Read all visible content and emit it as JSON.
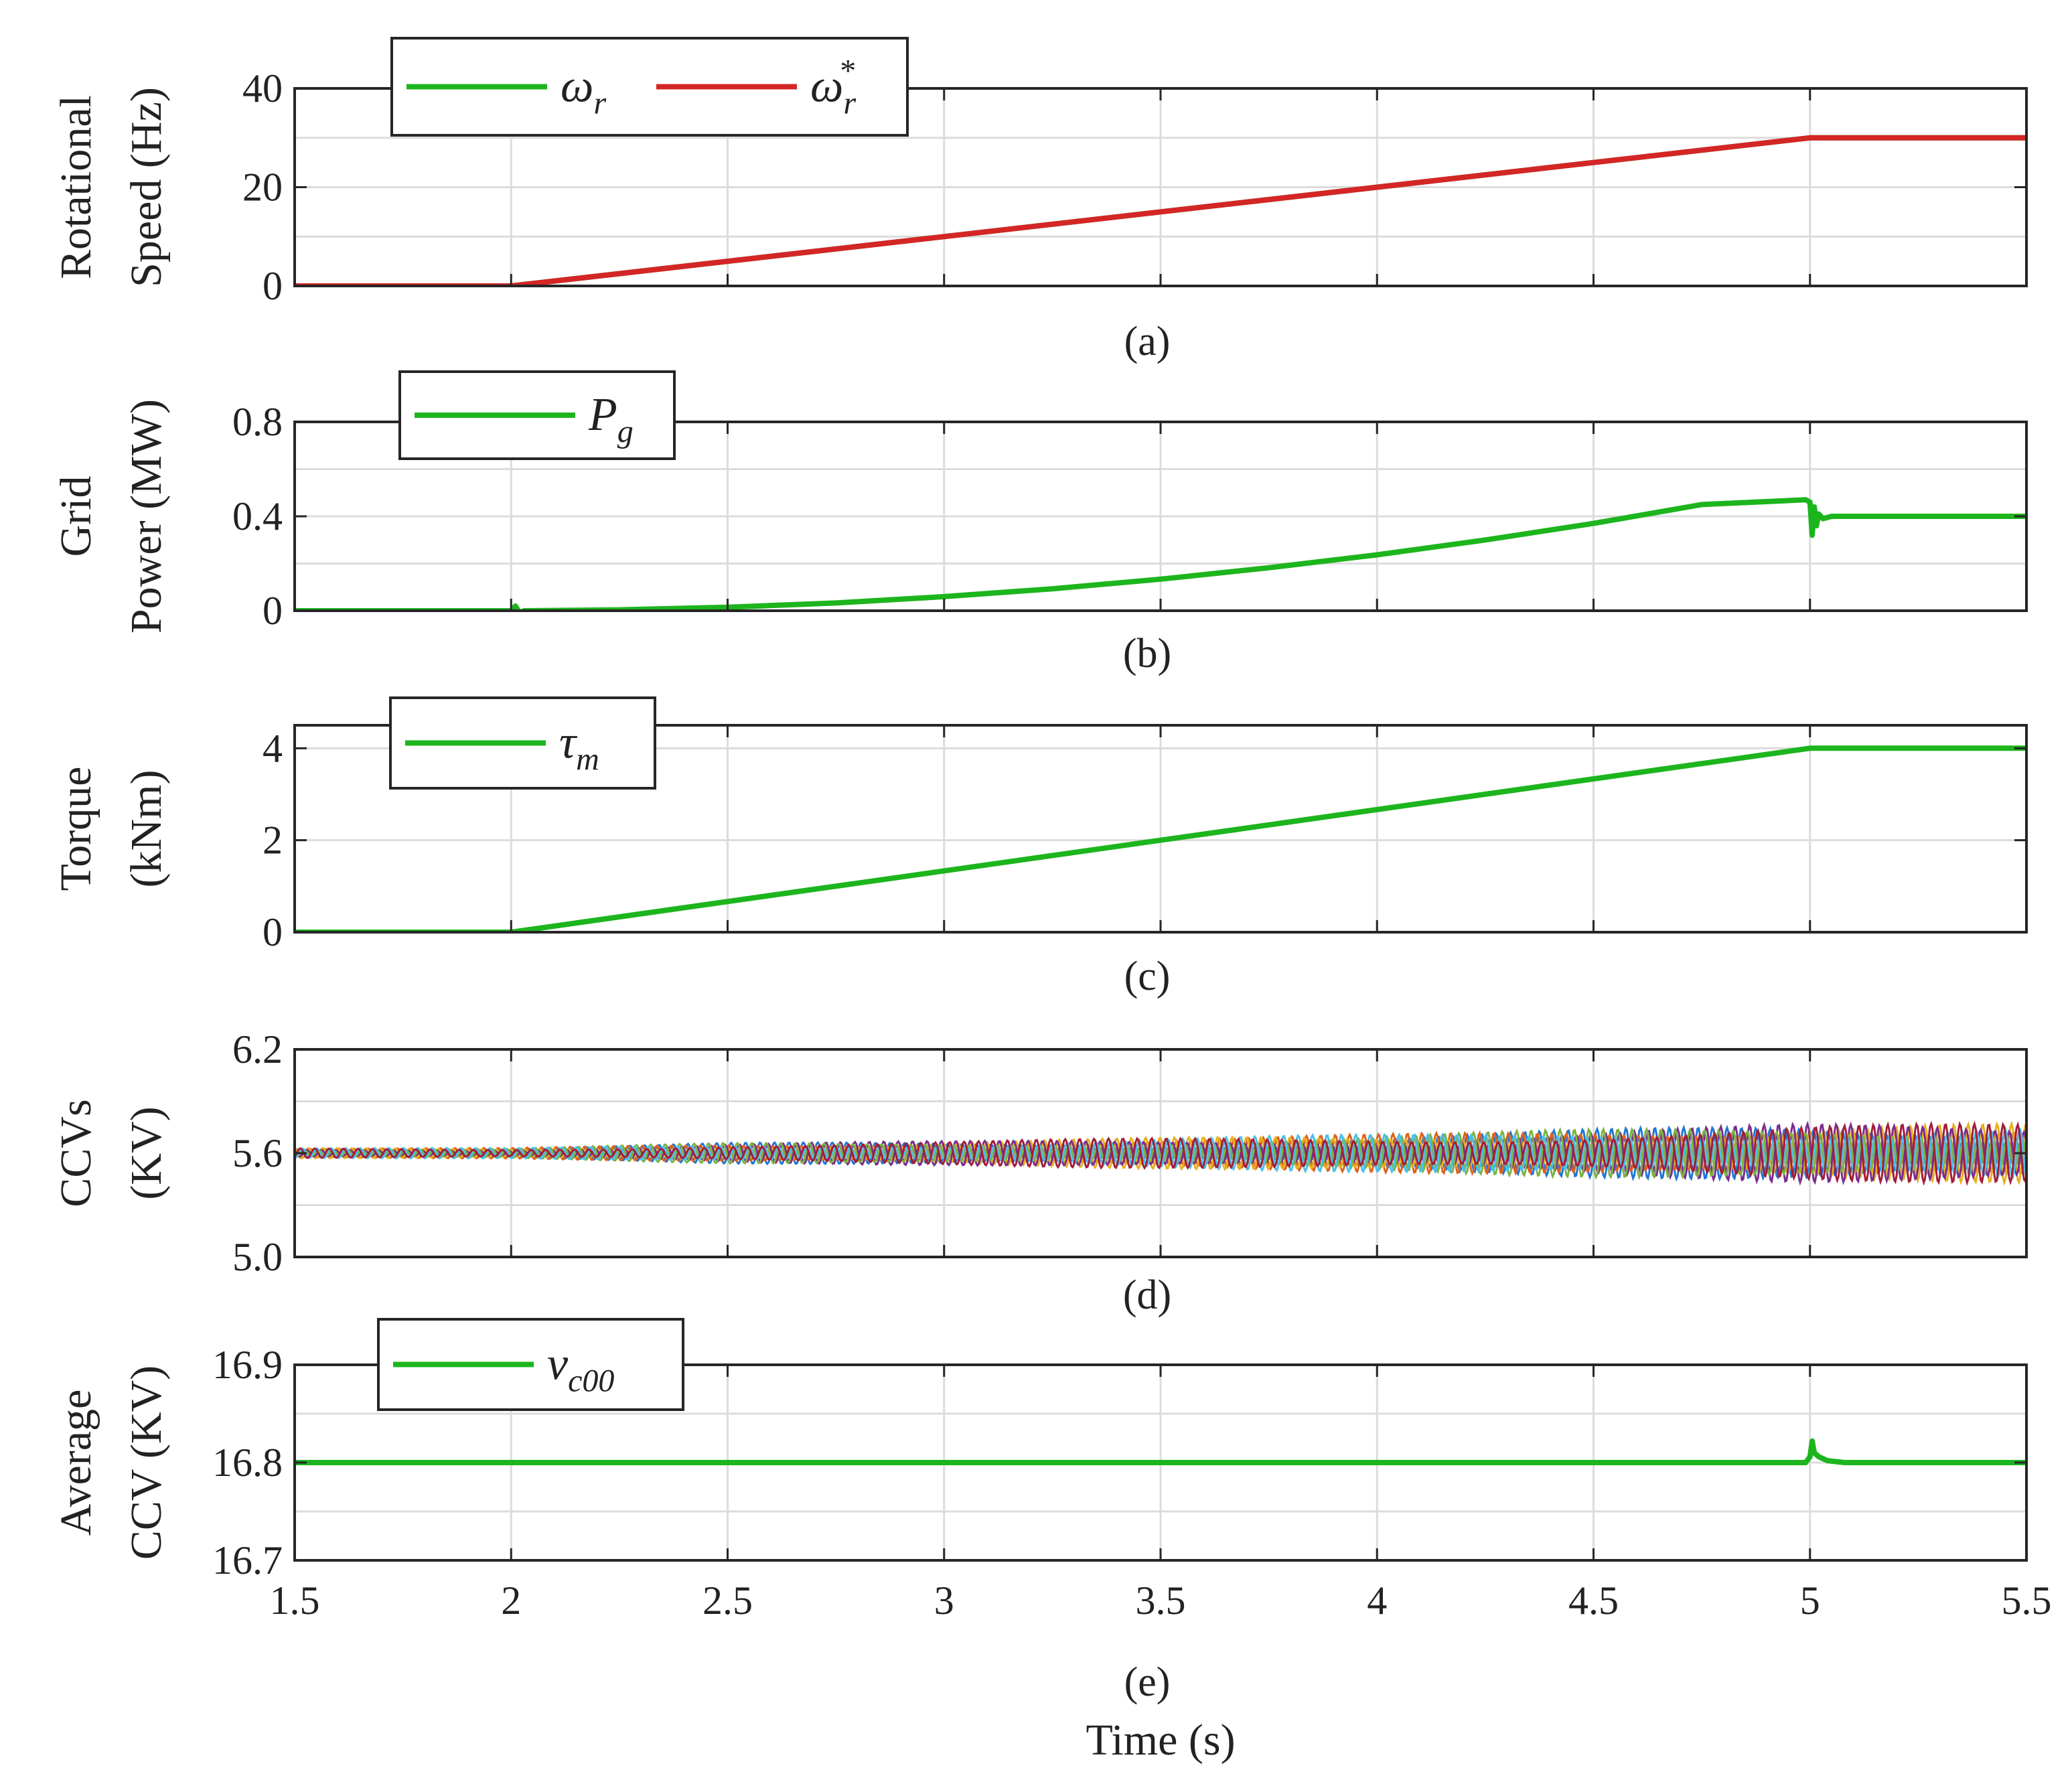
{
  "chart_data": [
    {
      "type": "line",
      "id": "a",
      "ylabel": [
        "Rotational",
        "Speed  (Hz)"
      ],
      "sublabel": "(a)",
      "xlim": [
        1.5,
        5.5
      ],
      "ylim": [
        0,
        40
      ],
      "yticks": [
        "0",
        "20",
        "40"
      ],
      "ytick_values": [
        0,
        20,
        40
      ],
      "grid": true,
      "legend": {
        "placement": "top-left",
        "entries": [
          {
            "symbol": "ω",
            "subscript": "r",
            "superscript": ""
          },
          {
            "symbol": "ω",
            "subscript": "r",
            "superscript": "*"
          }
        ]
      },
      "series": [
        {
          "name": "ω_r",
          "color": "#1db51d",
          "x": [
            1.5,
            2,
            5,
            5.5
          ],
          "y": [
            0,
            0,
            30,
            30
          ]
        },
        {
          "name": "ω_r*",
          "color": "#d42626",
          "x": [
            1.5,
            2,
            5,
            5.5
          ],
          "y": [
            0,
            0,
            30,
            30
          ]
        }
      ]
    },
    {
      "type": "line",
      "id": "b",
      "ylabel": [
        "Grid",
        "Power (MW)"
      ],
      "sublabel": "(b)",
      "xlim": [
        1.5,
        5.5
      ],
      "ylim": [
        0,
        0.8
      ],
      "yticks": [
        "0",
        "0.4",
        "0.8"
      ],
      "ytick_values": [
        0,
        0.4,
        0.8
      ],
      "grid": true,
      "legend": {
        "placement": "top-left",
        "entries": [
          {
            "symbol": "P",
            "subscript": "g",
            "superscript": ""
          }
        ]
      },
      "series": [
        {
          "name": "P_g",
          "color": "#1db51d",
          "x": [
            1.5,
            2.0,
            2.01,
            2.02,
            2.03,
            2.25,
            2.5,
            2.75,
            3.0,
            3.25,
            3.5,
            3.75,
            4.0,
            4.25,
            4.5,
            4.75,
            4.99,
            5.0,
            5.005,
            5.01,
            5.015,
            5.02,
            5.03,
            5.05,
            5.5
          ],
          "y": [
            0,
            0,
            0.02,
            -0.01,
            0,
            0.004,
            0.015,
            0.033,
            0.06,
            0.093,
            0.134,
            0.182,
            0.237,
            0.3,
            0.37,
            0.45,
            0.47,
            0.46,
            0.32,
            0.44,
            0.36,
            0.41,
            0.39,
            0.4,
            0.4
          ]
        }
      ]
    },
    {
      "type": "line",
      "id": "c",
      "ylabel": [
        "Torque",
        "(kNm)"
      ],
      "sublabel": "(c)",
      "xlim": [
        1.5,
        5.5
      ],
      "ylim": [
        0,
        4.5
      ],
      "yticks": [
        "0",
        "2",
        "4"
      ],
      "ytick_values": [
        0,
        2,
        4
      ],
      "grid": true,
      "legend": {
        "placement": "top-left",
        "entries": [
          {
            "symbol": "τ",
            "subscript": "m",
            "superscript": ""
          }
        ]
      },
      "series": [
        {
          "name": "τ_m",
          "color": "#1db51d",
          "x": [
            1.5,
            2,
            5,
            5.5
          ],
          "y": [
            0,
            0,
            4,
            4
          ]
        }
      ]
    },
    {
      "type": "line",
      "id": "d",
      "ylabel": [
        "CCVs",
        "(KV)"
      ],
      "sublabel": "(d)",
      "xlim": [
        1.5,
        5.5
      ],
      "ylim": [
        5.0,
        6.2
      ],
      "yticks": [
        "5.0",
        "5.6",
        "6.2"
      ],
      "ytick_values": [
        5.0,
        5.6,
        6.2
      ],
      "grid": true,
      "note": "Multiple oscillating capacitor voltage traces around 5.6 KV; ripple amplitude ~0.03 at t=1.5-2 s growing to ~0.17 at t=5-5.5 s",
      "series": [
        {
          "name": "CCV 1",
          "color": "#1f77d4",
          "center": 5.6
        },
        {
          "name": "CCV 2",
          "color": "#e0621a",
          "center": 5.6
        },
        {
          "name": "CCV 3",
          "color": "#e8b020",
          "center": 5.6
        },
        {
          "name": "CCV 4",
          "color": "#7b2d8e",
          "center": 5.6
        },
        {
          "name": "CCV 5",
          "color": "#7cb342",
          "center": 5.6
        },
        {
          "name": "CCV 6",
          "color": "#4dbfe6",
          "center": 5.6
        },
        {
          "name": "CCV 7",
          "color": "#a31d3a",
          "center": 5.6
        }
      ],
      "envelope": {
        "x": [
          1.5,
          2.0,
          2.5,
          3.0,
          3.5,
          4.0,
          4.5,
          5.0,
          5.5
        ],
        "amplitude": [
          0.03,
          0.03,
          0.06,
          0.07,
          0.09,
          0.11,
          0.14,
          0.17,
          0.17
        ]
      }
    },
    {
      "type": "line",
      "id": "e",
      "ylabel": [
        "Average",
        "CCV (KV)"
      ],
      "sublabel": "(e)",
      "xlabel": "Time (s)",
      "xlim": [
        1.5,
        5.5
      ],
      "xticks": [
        "1.5",
        "2",
        "2.5",
        "3",
        "3.5",
        "4",
        "4.5",
        "5",
        "5.5"
      ],
      "xtick_values": [
        1.5,
        2,
        2.5,
        3,
        3.5,
        4,
        4.5,
        5,
        5.5
      ],
      "ylim": [
        16.7,
        16.9
      ],
      "yticks": [
        "16.7",
        "16.8",
        "16.9"
      ],
      "ytick_values": [
        16.7,
        16.8,
        16.9
      ],
      "grid": true,
      "legend": {
        "placement": "top-left",
        "entries": [
          {
            "symbol": "v",
            "subscript": "c00",
            "superscript": ""
          }
        ]
      },
      "series": [
        {
          "name": "v_c00",
          "color": "#1db51d",
          "x": [
            1.5,
            4.99,
            5.0,
            5.005,
            5.01,
            5.02,
            5.04,
            5.08,
            5.5
          ],
          "y": [
            16.8,
            16.8,
            16.806,
            16.822,
            16.81,
            16.806,
            16.802,
            16.8,
            16.8
          ]
        }
      ]
    }
  ]
}
